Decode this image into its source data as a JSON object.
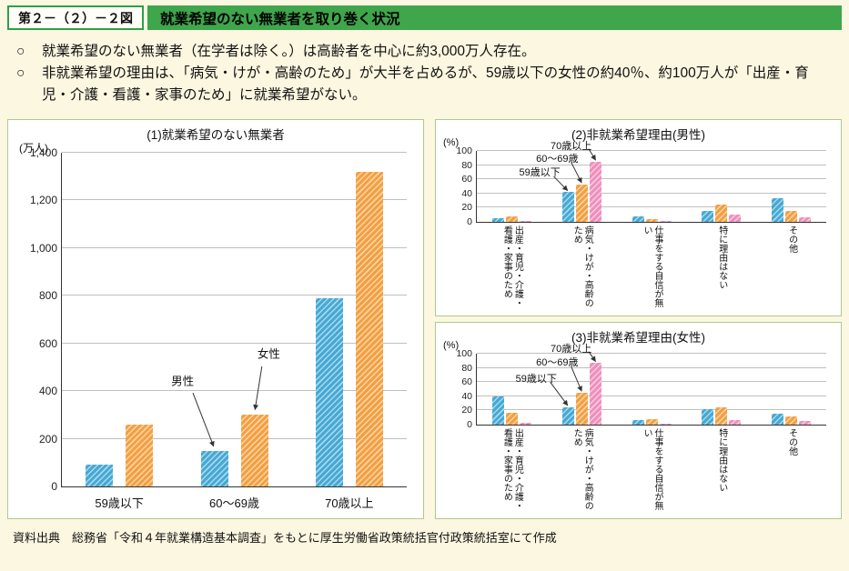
{
  "page": {
    "figure_label": "第２－（２）－２図",
    "title": "就業希望のない無業者を取り巻く状況",
    "bullet_marker": "○",
    "bullets": [
      "就業希望のない無業者（在学者は除く。）は高齢者を中心に約3,000万人存在。",
      "非就業希望の理由は、「病気・けが・高齢のため」が大半を占めるが、59歳以下の女性の約40％、約100万人が「出産・育児・介護・看護・家事のため」に就業希望がない。"
    ],
    "source": "資料出典　総務省「令和４年就業構造基本調査」をもとに厚生労働省政策統括官付政策統括室にて作成"
  },
  "colors": {
    "header_green": "#3fa64c",
    "background_cream": "#fcf7e1",
    "male_blue": "#45a9d4",
    "female_orange": "#f3a041",
    "senior_pink": "#ef8fbc"
  },
  "chart_data": [
    {
      "type": "bar",
      "title": "(1)就業希望のない無業者",
      "unit": "(万人)",
      "ylim": [
        0,
        1400
      ],
      "grid": true,
      "yticks": [
        {
          "v": 0,
          "label": "0"
        },
        {
          "v": 200,
          "label": "200"
        },
        {
          "v": 400,
          "label": "400"
        },
        {
          "v": 600,
          "label": "600"
        },
        {
          "v": 800,
          "label": "800"
        },
        {
          "v": 1000,
          "label": "1,000"
        },
        {
          "v": 1200,
          "label": "1,200"
        },
        {
          "v": 1400,
          "label": "1,400"
        }
      ],
      "categories": [
        "59歳以下",
        "60～69歳",
        "70歳以上"
      ],
      "series": [
        {
          "name": "男性",
          "color": "#45a9d4",
          "values": [
            90,
            150,
            790
          ]
        },
        {
          "name": "女性",
          "color": "#f3a041",
          "values": [
            260,
            300,
            1320
          ]
        }
      ],
      "annotations": [
        {
          "text": "男性",
          "tx": 35,
          "ty": 68,
          "x1": 38,
          "y1": 72,
          "x2": 44,
          "y2": 88
        },
        {
          "text": "女性",
          "tx": 60,
          "ty": 60,
          "x1": 58,
          "y1": 64,
          "x2": 56,
          "y2": 77
        }
      ]
    },
    {
      "type": "bar",
      "title": "(2)非就業希望理由(男性)",
      "unit": "(%)",
      "ylim": [
        0,
        100
      ],
      "grid": true,
      "yticks": [
        {
          "v": 0,
          "label": "0"
        },
        {
          "v": 20,
          "label": "20"
        },
        {
          "v": 40,
          "label": "40"
        },
        {
          "v": 60,
          "label": "60"
        },
        {
          "v": 80,
          "label": "80"
        },
        {
          "v": 100,
          "label": "100"
        }
      ],
      "categories": [
        "出産・育児・介護・看護・家事のため",
        "病気・けが・高齢のため",
        "仕事をする自信が無い",
        "特に理由はない",
        "その他"
      ],
      "series": [
        {
          "name": "59歳以下",
          "color": "#45a9d4",
          "values": [
            5,
            42,
            8,
            15,
            33
          ]
        },
        {
          "name": "60～69歳",
          "color": "#f3a041",
          "values": [
            8,
            53,
            4,
            25,
            15
          ]
        },
        {
          "name": "70歳以上",
          "color": "#ef8fbc",
          "values": [
            1,
            85,
            2,
            10,
            6
          ]
        }
      ],
      "annotations": [
        {
          "text": "70歳以上",
          "tx": 27,
          "ty": -8,
          "x1": 32,
          "y1": -3,
          "x2": 34,
          "y2": 13
        },
        {
          "text": "60～69歳",
          "tx": 23,
          "ty": 10,
          "x1": 27,
          "y1": 16,
          "x2": 30,
          "y2": 45
        },
        {
          "text": "59歳以下",
          "tx": 18,
          "ty": 30,
          "x1": 22,
          "y1": 36,
          "x2": 26,
          "y2": 56
        }
      ]
    },
    {
      "type": "bar",
      "title": "(3)非就業希望理由(女性)",
      "unit": "(%)",
      "ylim": [
        0,
        100
      ],
      "grid": true,
      "yticks": [
        {
          "v": 0,
          "label": "0"
        },
        {
          "v": 20,
          "label": "20"
        },
        {
          "v": 40,
          "label": "40"
        },
        {
          "v": 60,
          "label": "60"
        },
        {
          "v": 80,
          "label": "80"
        },
        {
          "v": 100,
          "label": "100"
        }
      ],
      "categories": [
        "出産・育児・介護・看護・家事のため",
        "病気・けが・高齢のため",
        "仕事をする自信が無い",
        "特に理由はない",
        "その他"
      ],
      "series": [
        {
          "name": "59歳以下",
          "color": "#45a9d4",
          "values": [
            40,
            25,
            6,
            22,
            15
          ]
        },
        {
          "name": "60～69歳",
          "color": "#f3a041",
          "values": [
            17,
            45,
            8,
            25,
            12
          ]
        },
        {
          "name": "70歳以上",
          "color": "#ef8fbc",
          "values": [
            3,
            87,
            2,
            7,
            5
          ]
        }
      ],
      "annotations": [
        {
          "text": "70歳以上",
          "tx": 27,
          "ty": -8,
          "x1": 32,
          "y1": -3,
          "x2": 34,
          "y2": 11
        },
        {
          "text": "60～69歳",
          "tx": 23,
          "ty": 12,
          "x1": 27,
          "y1": 18,
          "x2": 30,
          "y2": 53
        },
        {
          "text": "59歳以下",
          "tx": 17,
          "ty": 34,
          "x1": 21,
          "y1": 40,
          "x2": 26,
          "y2": 73
        }
      ]
    }
  ]
}
